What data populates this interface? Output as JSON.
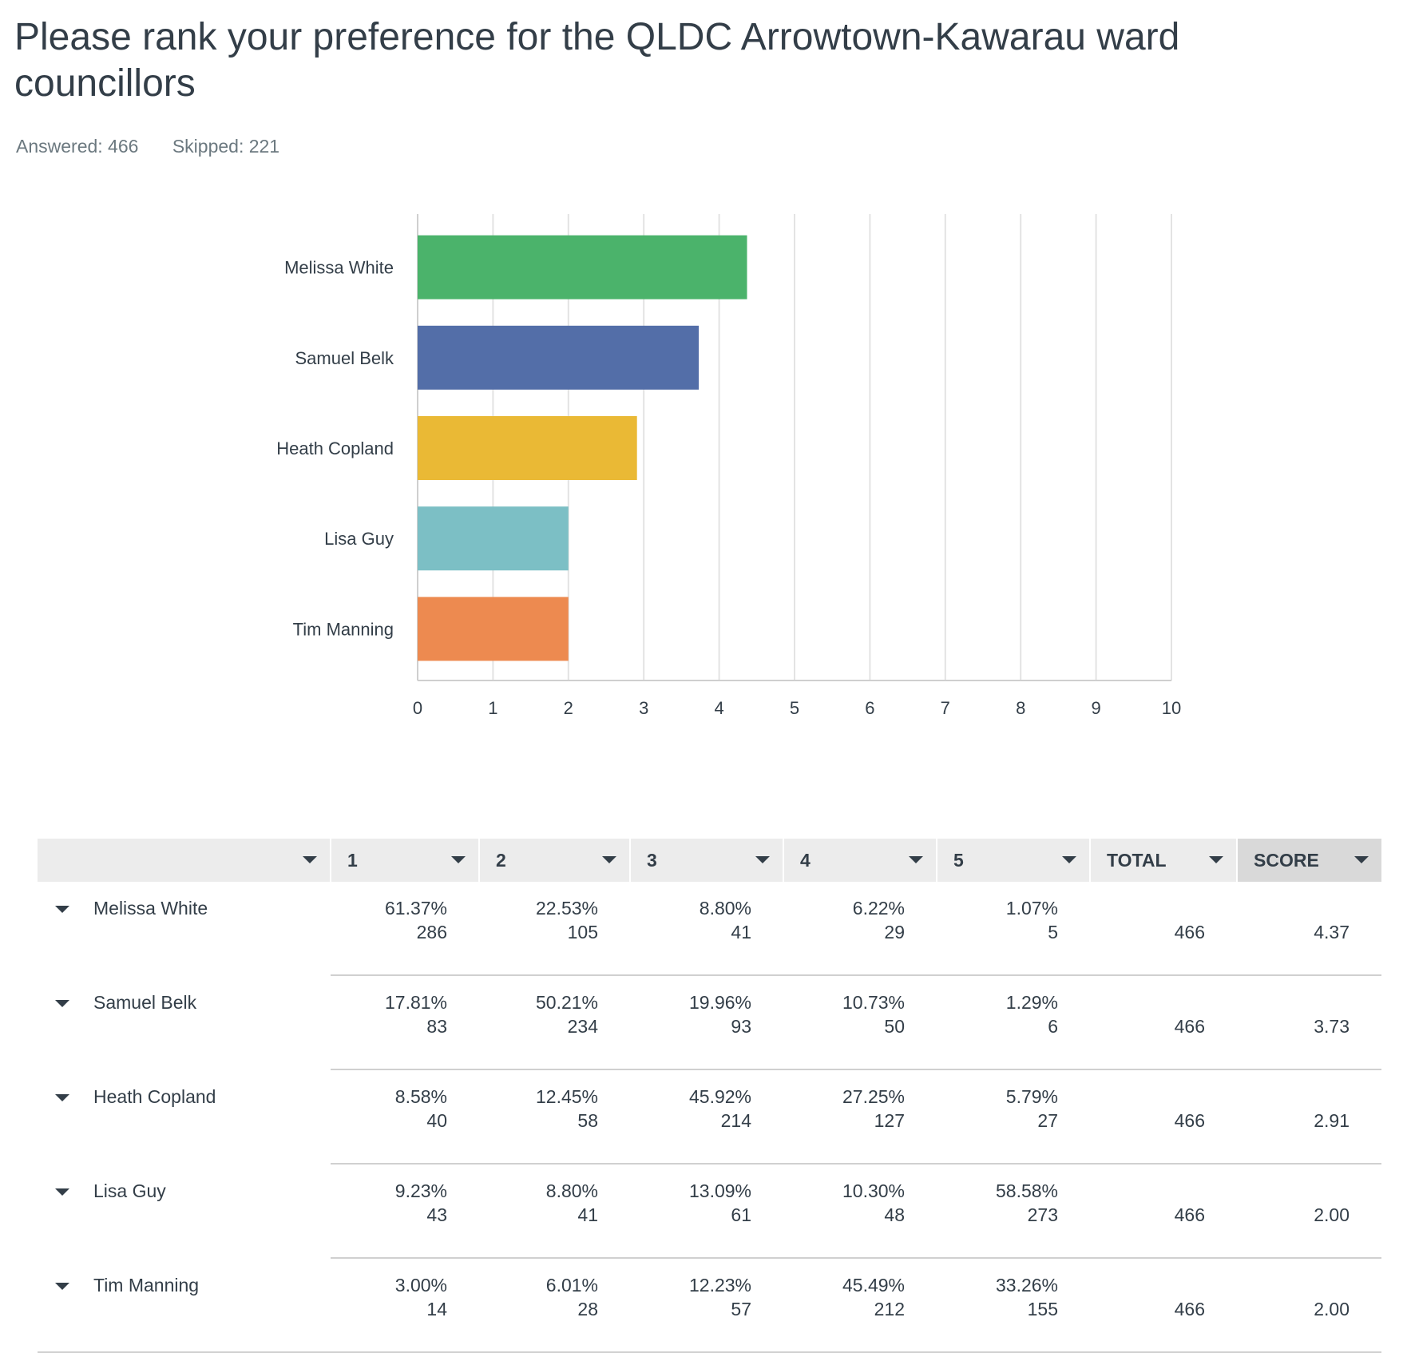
{
  "title": "Please rank your preference for the QLDC Arrowtown-Kawarau ward councillors",
  "answered": "Answered: 466",
  "skipped": "Skipped: 221",
  "chart_data": {
    "type": "bar",
    "orientation": "horizontal",
    "categories": [
      "Melissa White",
      "Samuel Belk",
      "Heath Copland",
      "Lisa Guy",
      "Tim Manning"
    ],
    "values": [
      4.37,
      3.73,
      2.91,
      2.0,
      2.0
    ],
    "colors": [
      "#4bb36b",
      "#536ea8",
      "#eab935",
      "#7cbfc5",
      "#ed8a50"
    ],
    "xlim": [
      0,
      10
    ],
    "xticks": [
      0,
      1,
      2,
      3,
      4,
      5,
      6,
      7,
      8,
      9,
      10
    ],
    "grid": true
  },
  "table": {
    "headers": [
      "",
      "1",
      "2",
      "3",
      "4",
      "5",
      "TOTAL",
      "SCORE"
    ],
    "rows": [
      {
        "name": "Melissa White",
        "cells": [
          [
            "61.37%",
            "286"
          ],
          [
            "22.53%",
            "105"
          ],
          [
            "8.80%",
            "41"
          ],
          [
            "6.22%",
            "29"
          ],
          [
            "1.07%",
            "5"
          ]
        ],
        "total": "466",
        "score": "4.37"
      },
      {
        "name": "Samuel Belk",
        "cells": [
          [
            "17.81%",
            "83"
          ],
          [
            "50.21%",
            "234"
          ],
          [
            "19.96%",
            "93"
          ],
          [
            "10.73%",
            "50"
          ],
          [
            "1.29%",
            "6"
          ]
        ],
        "total": "466",
        "score": "3.73"
      },
      {
        "name": "Heath Copland",
        "cells": [
          [
            "8.58%",
            "40"
          ],
          [
            "12.45%",
            "58"
          ],
          [
            "45.92%",
            "214"
          ],
          [
            "27.25%",
            "127"
          ],
          [
            "5.79%",
            "27"
          ]
        ],
        "total": "466",
        "score": "2.91"
      },
      {
        "name": "Lisa Guy",
        "cells": [
          [
            "9.23%",
            "43"
          ],
          [
            "8.80%",
            "41"
          ],
          [
            "13.09%",
            "61"
          ],
          [
            "10.30%",
            "48"
          ],
          [
            "58.58%",
            "273"
          ]
        ],
        "total": "466",
        "score": "2.00"
      },
      {
        "name": "Tim Manning",
        "cells": [
          [
            "3.00%",
            "14"
          ],
          [
            "6.01%",
            "28"
          ],
          [
            "12.23%",
            "57"
          ],
          [
            "45.49%",
            "212"
          ],
          [
            "33.26%",
            "155"
          ]
        ],
        "total": "466",
        "score": "2.00"
      }
    ]
  }
}
